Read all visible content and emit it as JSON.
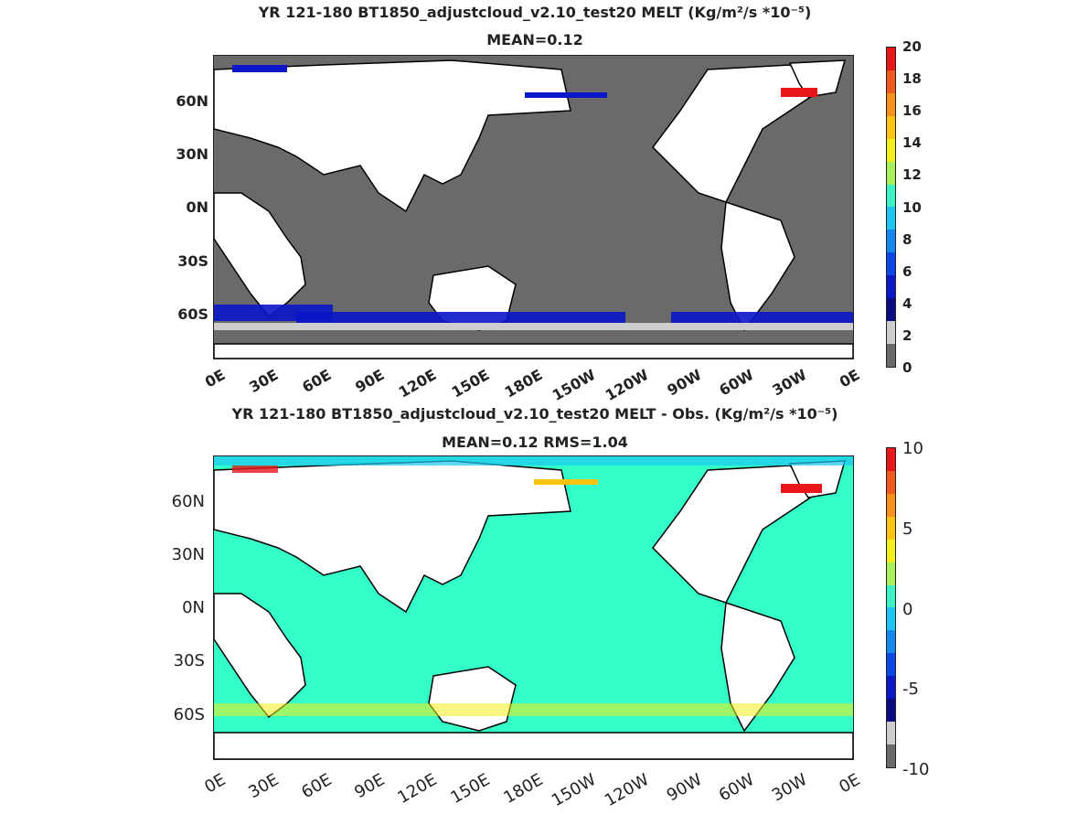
{
  "panel_top": {
    "title_line1": "YR 121-180 BT1850_adjustcloud_v2.10_test20 MELT (Kg/m²/s   *10⁻⁵)",
    "title_line2": "MEAN=0.12",
    "lat_labels": [
      "60N",
      "30N",
      "0N",
      "30S",
      "60S"
    ],
    "lon_labels": [
      "0E",
      "30E",
      "60E",
      "90E",
      "120E",
      "150E",
      "180E",
      "150W",
      "120W",
      "90W",
      "60W",
      "30W",
      "0E"
    ],
    "colorbar_ticks": [
      "20",
      "18",
      "16",
      "14",
      "12",
      "10",
      "8",
      "6",
      "4",
      "2",
      "0"
    ],
    "colorbar_colors": [
      "#e8151b",
      "#f05a1e",
      "#f5921c",
      "#fbc50f",
      "#f2ef1a",
      "#a6f05b",
      "#3cf2c4",
      "#1cc6f1",
      "#1587ef",
      "#0b46e6",
      "#0a16c8",
      "#0b0b80",
      "#cdcdcd",
      "#6a6a6a"
    ]
  },
  "panel_bottom": {
    "title_line1": "YR 121-180 BT1850_adjustcloud_v2.10_test20 MELT - Obs. (Kg/m²/s *10⁻⁵)",
    "title_line2": "MEAN=0.12   RMS=1.04",
    "lat_labels": [
      "60N",
      "30N",
      "0N",
      "30S",
      "60S"
    ],
    "lon_labels": [
      "0E",
      "30E",
      "60E",
      "90E",
      "120E",
      "150E",
      "180E",
      "150W",
      "120W",
      "90W",
      "60W",
      "30W",
      "0E"
    ],
    "colorbar_ticks": [
      "10",
      "5",
      "0",
      "-5",
      "-10"
    ],
    "colorbar_colors": [
      "#e8151b",
      "#f05a1e",
      "#f5921c",
      "#fbc50f",
      "#f2ef1a",
      "#a6f05b",
      "#3cf2c4",
      "#1cc6f1",
      "#1587ef",
      "#0b46e6",
      "#0a16c8",
      "#0b0b80",
      "#cdcdcd",
      "#6a6a6a"
    ]
  },
  "colors": {
    "land": "#ffffff",
    "ocean_top": "#6a6a6a",
    "ocean_bottom": "#35ffc8",
    "coast": "#000000"
  }
}
